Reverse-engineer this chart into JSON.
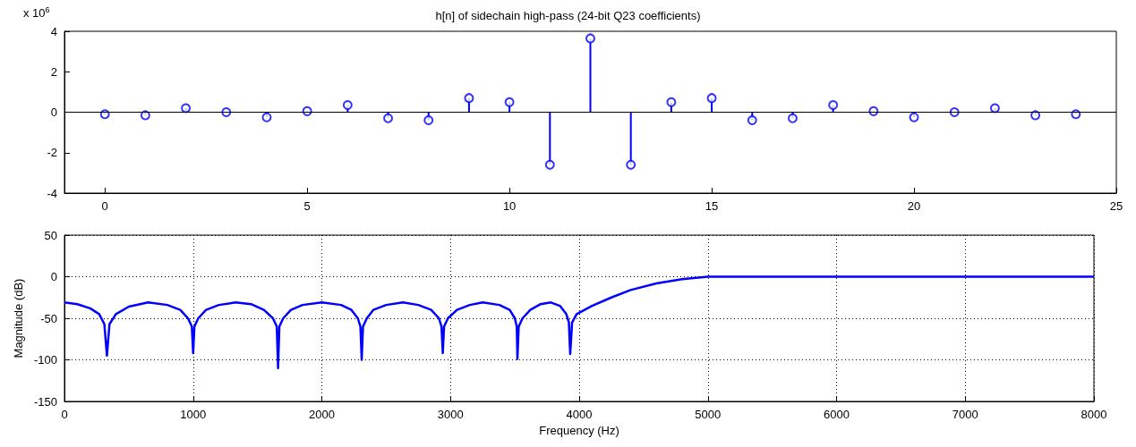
{
  "chart_data": [
    {
      "type": "lollipop",
      "title": "h[n] of sidechain high-pass (24-bit Q23 coefficients)",
      "annotations": [
        "x 10$^{6}$"
      ],
      "x": [
        0,
        1,
        2,
        3,
        4,
        5,
        6,
        7,
        8,
        9,
        10,
        11,
        12,
        13,
        14,
        15,
        16,
        17,
        18,
        19,
        20,
        21,
        22,
        23,
        24
      ],
      "values": [
        -0.1,
        -0.15,
        0.2,
        0,
        -0.25,
        0.05,
        0.35,
        -0.3,
        -0.4,
        0.7,
        0.5,
        -2.6,
        3.65,
        -2.6,
        0.5,
        0.7,
        -0.4,
        -0.3,
        0.35,
        0.05,
        -0.25,
        0,
        0.2,
        -0.15,
        -0.1
      ],
      "color": "#0000ff",
      "marker": "circle",
      "grid": false,
      "ref_lines": [
        {
          "axis": "y",
          "value": 0,
          "color": "#000000"
        }
      ],
      "xlim": [
        -1,
        25
      ],
      "xticks": [
        0,
        5,
        10,
        15,
        20,
        25
      ],
      "ylim": [
        -4,
        4
      ],
      "yticks": [
        -4,
        -2,
        0,
        2,
        4
      ]
    },
    {
      "type": "line",
      "xlabel": "Frequency (Hz)",
      "ylabel": "Magnitude (dB)",
      "color": "#0000ff",
      "grid": true,
      "marker": "none",
      "line_style": "solid",
      "x": [
        0,
        100,
        200,
        270,
        310,
        330,
        350,
        400,
        500,
        650,
        800,
        900,
        960,
        990,
        1000,
        1010,
        1040,
        1100,
        1200,
        1330,
        1450,
        1550,
        1620,
        1650,
        1660,
        1670,
        1700,
        1760,
        1850,
        2000,
        2150,
        2230,
        2280,
        2300,
        2310,
        2320,
        2350,
        2400,
        2500,
        2630,
        2750,
        2850,
        2910,
        2930,
        2940,
        2950,
        2980,
        3050,
        3150,
        3250,
        3380,
        3460,
        3500,
        3515,
        3520,
        3530,
        3560,
        3620,
        3700,
        3780,
        3850,
        3900,
        3920,
        3930,
        3945,
        3980,
        4100,
        4250,
        4400,
        4600,
        4800,
        5000,
        5500,
        6000,
        6500,
        7000,
        7500,
        8000
      ],
      "values": [
        -31,
        -33,
        -38,
        -45,
        -57,
        -95,
        -57,
        -45,
        -36,
        -31,
        -34,
        -40,
        -50,
        -60,
        -92,
        -60,
        -50,
        -40,
        -34,
        -31,
        -33,
        -40,
        -50,
        -60,
        -110,
        -60,
        -50,
        -40,
        -34,
        -31,
        -34,
        -40,
        -50,
        -60,
        -100,
        -60,
        -50,
        -40,
        -34,
        -31,
        -34,
        -40,
        -50,
        -60,
        -92,
        -60,
        -50,
        -40,
        -34,
        -31,
        -34,
        -40,
        -50,
        -60,
        -99,
        -60,
        -50,
        -40,
        -33,
        -31,
        -35,
        -45,
        -55,
        -93,
        -55,
        -45,
        -35,
        -25,
        -16,
        -8,
        -3,
        0,
        0,
        0,
        0,
        0,
        0,
        0
      ],
      "xlim": [
        0,
        8000
      ],
      "xticks": [
        0,
        1000,
        2000,
        3000,
        4000,
        5000,
        6000,
        7000,
        8000
      ],
      "ylim": [
        -150,
        50
      ],
      "yticks": [
        -150,
        -100,
        -50,
        0,
        50
      ]
    }
  ]
}
